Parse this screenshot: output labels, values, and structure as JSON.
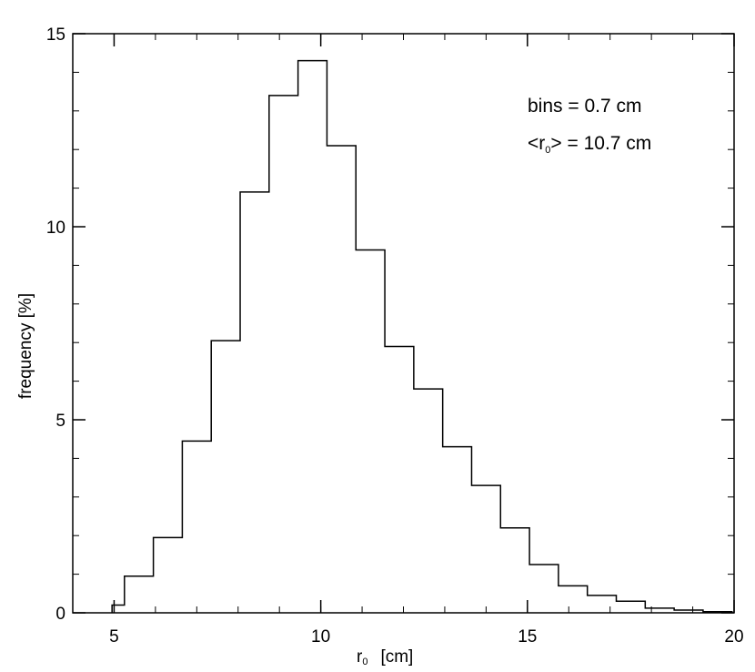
{
  "chart_data": {
    "type": "histogram",
    "title": "",
    "xlabel": "r",
    "xlabel_sub": "0",
    "xlabel_unit": "[cm]",
    "ylabel": "frequency  [%]",
    "xlim": [
      4,
      20
    ],
    "ylim": [
      0,
      15
    ],
    "x_ticks": [
      5,
      10,
      15,
      20
    ],
    "y_ticks": [
      0,
      5,
      10,
      15
    ],
    "x_tick_labels": [
      "5",
      "10",
      "15",
      "20"
    ],
    "y_tick_labels": [
      "0",
      "5",
      "10",
      "15"
    ],
    "x_minor_step": 1,
    "y_minor_step": 1,
    "grid": false,
    "bin_width": 0.7,
    "bin_edges": [
      4.95,
      5.25,
      5.95,
      6.65,
      7.35,
      8.05,
      8.75,
      9.45,
      10.15,
      10.85,
      11.55,
      12.25,
      12.95,
      13.65,
      14.35,
      15.05,
      15.75,
      16.45,
      17.15,
      17.85,
      18.55,
      19.25,
      19.95
    ],
    "values": [
      0.2,
      0.95,
      1.95,
      4.45,
      7.05,
      10.9,
      13.4,
      14.3,
      12.1,
      9.4,
      6.9,
      5.8,
      4.3,
      3.3,
      2.2,
      1.25,
      0.7,
      0.45,
      0.3,
      0.12,
      0.07,
      0.03
    ],
    "annotations": {
      "bins": "bins = 0.7 cm",
      "mean_prefix": "<r",
      "mean_sub": "0",
      "mean_suffix": "> = 10.7 cm"
    }
  }
}
